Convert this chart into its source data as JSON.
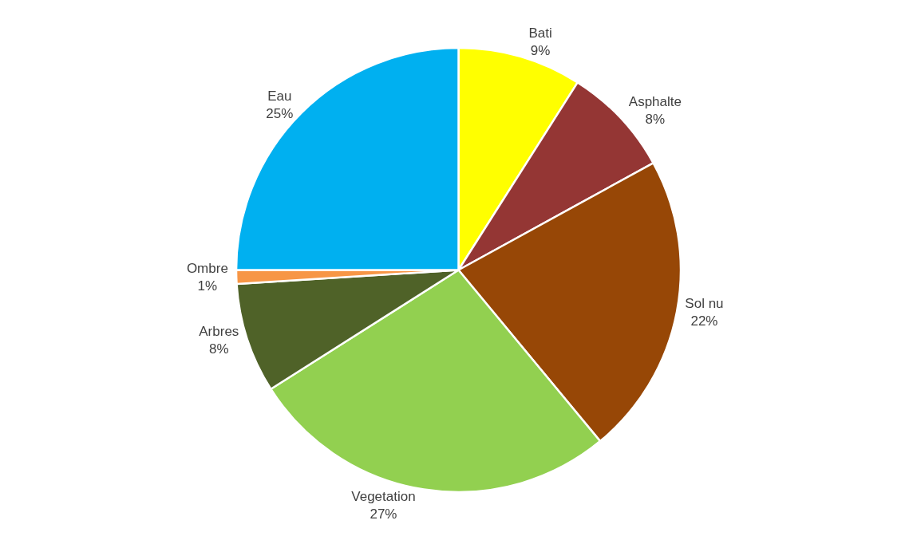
{
  "chart_data": {
    "type": "pie",
    "categories": [
      "Bati",
      "Asphalte",
      "Sol nu",
      "Vegetation",
      "Arbres",
      "Ombre",
      "Eau"
    ],
    "values": [
      9,
      8,
      22,
      27,
      8,
      1,
      25
    ],
    "value_labels": [
      "9%",
      "8%",
      "22%",
      "27%",
      "8%",
      "1%",
      "25%"
    ],
    "colors": [
      "#ffff00",
      "#943634",
      "#974706",
      "#92d050",
      "#4f6228",
      "#f79646",
      "#00b0f0"
    ],
    "legend": false
  }
}
